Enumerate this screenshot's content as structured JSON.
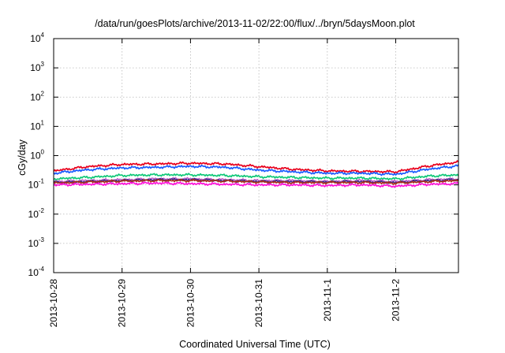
{
  "chart_data": {
    "type": "line",
    "title": "/data/run/goesPlots/archive/2013-11-02/22:00/flux/../bryn/5daysMoon.plot",
    "xlabel": "Coordinated Universal Time (UTC)",
    "ylabel": "cGy/day",
    "yscale": "log",
    "ylim": [
      0.0001,
      10000
    ],
    "xlim": [
      "2013-10-28 00:00",
      "2013-11-02 22:00"
    ],
    "grid": true,
    "x_ticks": [
      "2013-10-28",
      "2013-10-29",
      "2013-10-30",
      "2013-10-31",
      "2013-11-1",
      "2013-11-2"
    ],
    "y_ticks": [
      {
        "base": "10",
        "exp": "4"
      },
      {
        "base": "10",
        "exp": "3"
      },
      {
        "base": "10",
        "exp": "2"
      },
      {
        "base": "10",
        "exp": "1"
      },
      {
        "base": "10",
        "exp": "0"
      },
      {
        "base": "10",
        "exp": "-1"
      },
      {
        "base": "10",
        "exp": "-2"
      },
      {
        "base": "10",
        "exp": "-3"
      },
      {
        "base": "10",
        "exp": "-4"
      }
    ],
    "x": [
      "2013-10-28 00:00",
      "2013-10-28 12:00",
      "2013-10-29 00:00",
      "2013-10-29 12:00",
      "2013-10-30 00:00",
      "2013-10-30 12:00",
      "2013-10-31 00:00",
      "2013-10-31 12:00",
      "2013-11-01 00:00",
      "2013-11-01 12:00",
      "2013-11-02 00:00",
      "2013-11-02 12:00",
      "2013-11-02 22:00"
    ],
    "series": [
      {
        "color": "#e8001c",
        "values": [
          0.3,
          0.42,
          0.5,
          0.52,
          0.55,
          0.52,
          0.42,
          0.34,
          0.3,
          0.29,
          0.28,
          0.45,
          0.6
        ]
      },
      {
        "color": "#1a5cff",
        "values": [
          0.25,
          0.33,
          0.38,
          0.4,
          0.43,
          0.4,
          0.32,
          0.28,
          0.25,
          0.25,
          0.23,
          0.35,
          0.45
        ]
      },
      {
        "color": "#10c878",
        "values": [
          0.16,
          0.18,
          0.21,
          0.22,
          0.22,
          0.21,
          0.19,
          0.18,
          0.17,
          0.17,
          0.16,
          0.2,
          0.22
        ]
      },
      {
        "color": "#c060c8",
        "values": [
          0.13,
          0.14,
          0.15,
          0.16,
          0.16,
          0.15,
          0.14,
          0.14,
          0.13,
          0.14,
          0.13,
          0.15,
          0.16
        ]
      },
      {
        "color": "#3a2a90",
        "values": [
          0.12,
          0.13,
          0.14,
          0.15,
          0.15,
          0.14,
          0.13,
          0.13,
          0.125,
          0.13,
          0.12,
          0.14,
          0.15
        ]
      },
      {
        "color": "#a8301c",
        "values": [
          0.115,
          0.125,
          0.135,
          0.14,
          0.14,
          0.135,
          0.125,
          0.12,
          0.12,
          0.12,
          0.115,
          0.13,
          0.14
        ]
      },
      {
        "color": "#ff10d8",
        "values": [
          0.1,
          0.105,
          0.11,
          0.115,
          0.11,
          0.105,
          0.1,
          0.1,
          0.095,
          0.1,
          0.09,
          0.105,
          0.11
        ]
      }
    ]
  }
}
